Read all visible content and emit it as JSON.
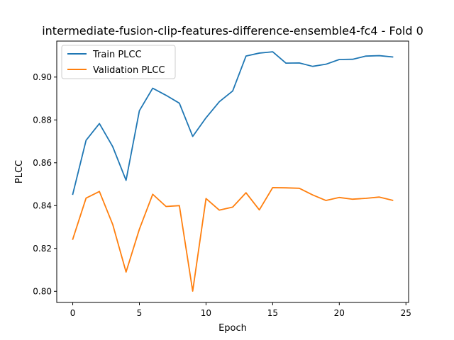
{
  "chart_data": {
    "type": "line",
    "title": "intermediate-fusion-clip-features-difference-ensemble4-fc4 - Fold 0",
    "xlabel": "Epoch",
    "ylabel": "PLCC",
    "xlim": [
      -1.2,
      25.2
    ],
    "ylim": [
      0.7948,
      0.9168
    ],
    "xticks": [
      0,
      5,
      10,
      15,
      20,
      25
    ],
    "xtick_labels": [
      "0",
      "5",
      "10",
      "15",
      "20",
      "25"
    ],
    "yticks": [
      0.8,
      0.82,
      0.84,
      0.86,
      0.88,
      0.9
    ],
    "ytick_labels": [
      "0.80",
      "0.82",
      "0.84",
      "0.86",
      "0.88",
      "0.90"
    ],
    "grid": false,
    "legend_position": "top-left",
    "x": [
      0,
      1,
      2,
      3,
      4,
      5,
      6,
      7,
      8,
      9,
      10,
      11,
      12,
      13,
      14,
      15,
      16,
      17,
      18,
      19,
      20,
      21,
      22,
      23,
      24
    ],
    "series": [
      {
        "name": "Train PLCC",
        "color": "#1f77b4",
        "values": [
          0.8453,
          0.8705,
          0.8783,
          0.8675,
          0.8518,
          0.8843,
          0.8948,
          0.8915,
          0.8878,
          0.8723,
          0.881,
          0.8885,
          0.8935,
          0.9098,
          0.9112,
          0.9118,
          0.9065,
          0.9066,
          0.905,
          0.906,
          0.9082,
          0.9083,
          0.9098,
          0.91,
          0.9094
        ]
      },
      {
        "name": "Validation PLCC",
        "color": "#ff7f0e",
        "values": [
          0.8243,
          0.8435,
          0.8466,
          0.8312,
          0.809,
          0.829,
          0.8453,
          0.8396,
          0.84,
          0.8001,
          0.8433,
          0.8379,
          0.8393,
          0.846,
          0.838,
          0.8484,
          0.8483,
          0.8481,
          0.845,
          0.8424,
          0.8438,
          0.843,
          0.8434,
          0.844,
          0.8425
        ]
      }
    ]
  }
}
